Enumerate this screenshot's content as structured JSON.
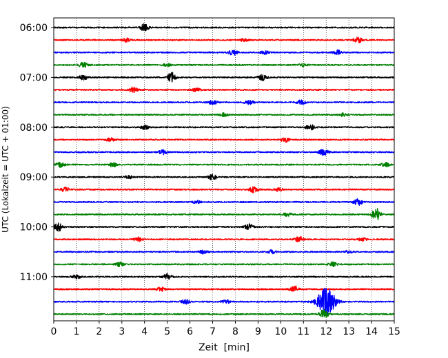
{
  "chart_data": {
    "type": "line",
    "title": "",
    "xlabel": "Zeit  [min]",
    "ylabel": "UTC (Lokalzeit = UTC + 01:00)",
    "xlim": [
      0,
      15
    ],
    "x_ticks": [
      0,
      1,
      2,
      3,
      4,
      5,
      6,
      7,
      8,
      9,
      10,
      11,
      12,
      13,
      14,
      15
    ],
    "y_tick_labels": [
      "06:00",
      "07:00",
      "08:00",
      "09:00",
      "10:00",
      "11:00"
    ],
    "trace_interval_min": 15,
    "start_time": "06:00",
    "grid": "vertical dotted",
    "colors": [
      "#000000",
      "#ff0000",
      "#0000ff",
      "#008000"
    ],
    "series": [
      {
        "start": "06:00",
        "events": [
          [
            4.0,
            1.0
          ]
        ]
      },
      {
        "start": "06:15",
        "events": [
          [
            3.2,
            0.5
          ],
          [
            8.4,
            0.4
          ],
          [
            13.4,
            0.8
          ]
        ]
      },
      {
        "start": "06:30",
        "events": [
          [
            7.9,
            0.8
          ],
          [
            9.3,
            0.5
          ],
          [
            12.5,
            0.6
          ]
        ]
      },
      {
        "start": "06:45",
        "events": [
          [
            1.3,
            0.8
          ],
          [
            5.0,
            0.4
          ],
          [
            11.0,
            0.4
          ]
        ]
      },
      {
        "start": "07:00",
        "events": [
          [
            1.3,
            0.7
          ],
          [
            5.2,
            1.6
          ],
          [
            9.2,
            0.9
          ]
        ]
      },
      {
        "start": "07:15",
        "events": [
          [
            3.5,
            0.8
          ],
          [
            6.3,
            0.5
          ]
        ]
      },
      {
        "start": "07:30",
        "events": [
          [
            7.0,
            0.6
          ],
          [
            8.6,
            0.6
          ],
          [
            10.9,
            0.6
          ]
        ]
      },
      {
        "start": "07:45",
        "events": [
          [
            7.5,
            0.5
          ],
          [
            12.8,
            0.5
          ]
        ]
      },
      {
        "start": "08:00",
        "events": [
          [
            4.0,
            0.6
          ],
          [
            11.3,
            0.8
          ]
        ]
      },
      {
        "start": "08:15",
        "events": [
          [
            2.5,
            0.5
          ],
          [
            10.2,
            0.7
          ]
        ]
      },
      {
        "start": "08:30",
        "events": [
          [
            4.8,
            0.6
          ],
          [
            11.9,
            1.1
          ]
        ]
      },
      {
        "start": "08:45",
        "events": [
          [
            0.3,
            0.7
          ],
          [
            2.6,
            0.6
          ],
          [
            14.6,
            0.6
          ]
        ]
      },
      {
        "start": "09:00",
        "events": [
          [
            3.3,
            0.4
          ],
          [
            7.0,
            0.8
          ]
        ]
      },
      {
        "start": "09:15",
        "events": [
          [
            0.5,
            0.6
          ],
          [
            8.8,
            0.8
          ],
          [
            9.9,
            0.4
          ]
        ]
      },
      {
        "start": "09:30",
        "events": [
          [
            6.3,
            0.4
          ],
          [
            13.4,
            0.9
          ]
        ]
      },
      {
        "start": "09:45",
        "events": [
          [
            10.3,
            0.5
          ],
          [
            14.2,
            1.8
          ]
        ]
      },
      {
        "start": "10:00",
        "events": [
          [
            0.2,
            1.2
          ],
          [
            8.6,
            0.8
          ]
        ]
      },
      {
        "start": "10:15",
        "events": [
          [
            3.7,
            0.6
          ],
          [
            10.8,
            0.8
          ],
          [
            13.6,
            0.4
          ]
        ]
      },
      {
        "start": "10:30",
        "events": [
          [
            6.6,
            0.5
          ],
          [
            9.6,
            0.5
          ],
          [
            13.0,
            0.3
          ]
        ]
      },
      {
        "start": "10:45",
        "events": [
          [
            2.9,
            0.6
          ],
          [
            12.3,
            0.6
          ]
        ]
      },
      {
        "start": "11:00",
        "events": [
          [
            1.0,
            0.6
          ],
          [
            5.0,
            0.8
          ]
        ]
      },
      {
        "start": "11:15",
        "events": [
          [
            4.7,
            0.6
          ],
          [
            10.6,
            0.9
          ]
        ]
      },
      {
        "start": "11:30",
        "events": [
          [
            5.8,
            0.6
          ],
          [
            7.6,
            0.5
          ],
          [
            12.0,
            4.0
          ]
        ]
      },
      {
        "start": "11:45",
        "events": [
          [
            11.9,
            1.4
          ]
        ]
      }
    ]
  }
}
